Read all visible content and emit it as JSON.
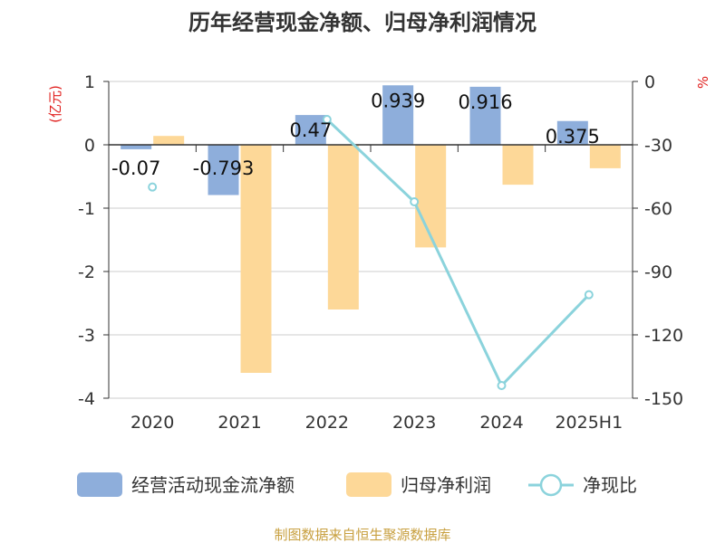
{
  "chart_data": {
    "type": "bar",
    "title": "历年经营现金净额、归母净利润情况",
    "categories": [
      "2020",
      "2021",
      "2022",
      "2023",
      "2024",
      "2025H1"
    ],
    "y_left": {
      "unit": "(亿元)",
      "range": [
        -4,
        1
      ],
      "ticks": [
        "1",
        "0",
        "-1",
        "-2",
        "-3",
        "-4"
      ]
    },
    "y_right": {
      "unit": "%",
      "range": [
        -150,
        0
      ],
      "ticks": [
        "0",
        "-30",
        "-60",
        "-90",
        "-120",
        "-150"
      ]
    },
    "series": [
      {
        "name": "经营活动现金流净额",
        "type": "bar",
        "axis": "left",
        "color": "#8eaedb",
        "values": [
          -0.07,
          -0.793,
          0.47,
          0.939,
          0.916,
          0.375
        ],
        "labels": [
          "-0.07",
          "-0.793",
          "0.47",
          "0.939",
          "0.916",
          "0.375"
        ]
      },
      {
        "name": "归母净利润",
        "type": "bar",
        "axis": "left",
        "color": "#fdd898",
        "values": [
          0.14,
          -3.6,
          -2.6,
          -1.62,
          -0.63,
          -0.37
        ]
      },
      {
        "name": "净现比",
        "type": "line",
        "axis": "right",
        "color": "#8bd3dc",
        "values": [
          -50,
          null,
          -18,
          -57,
          -144,
          -101
        ]
      }
    ],
    "grid": true,
    "legend": "bottom"
  },
  "footer": {
    "source": "制图数据来自恒生聚源数据库"
  }
}
